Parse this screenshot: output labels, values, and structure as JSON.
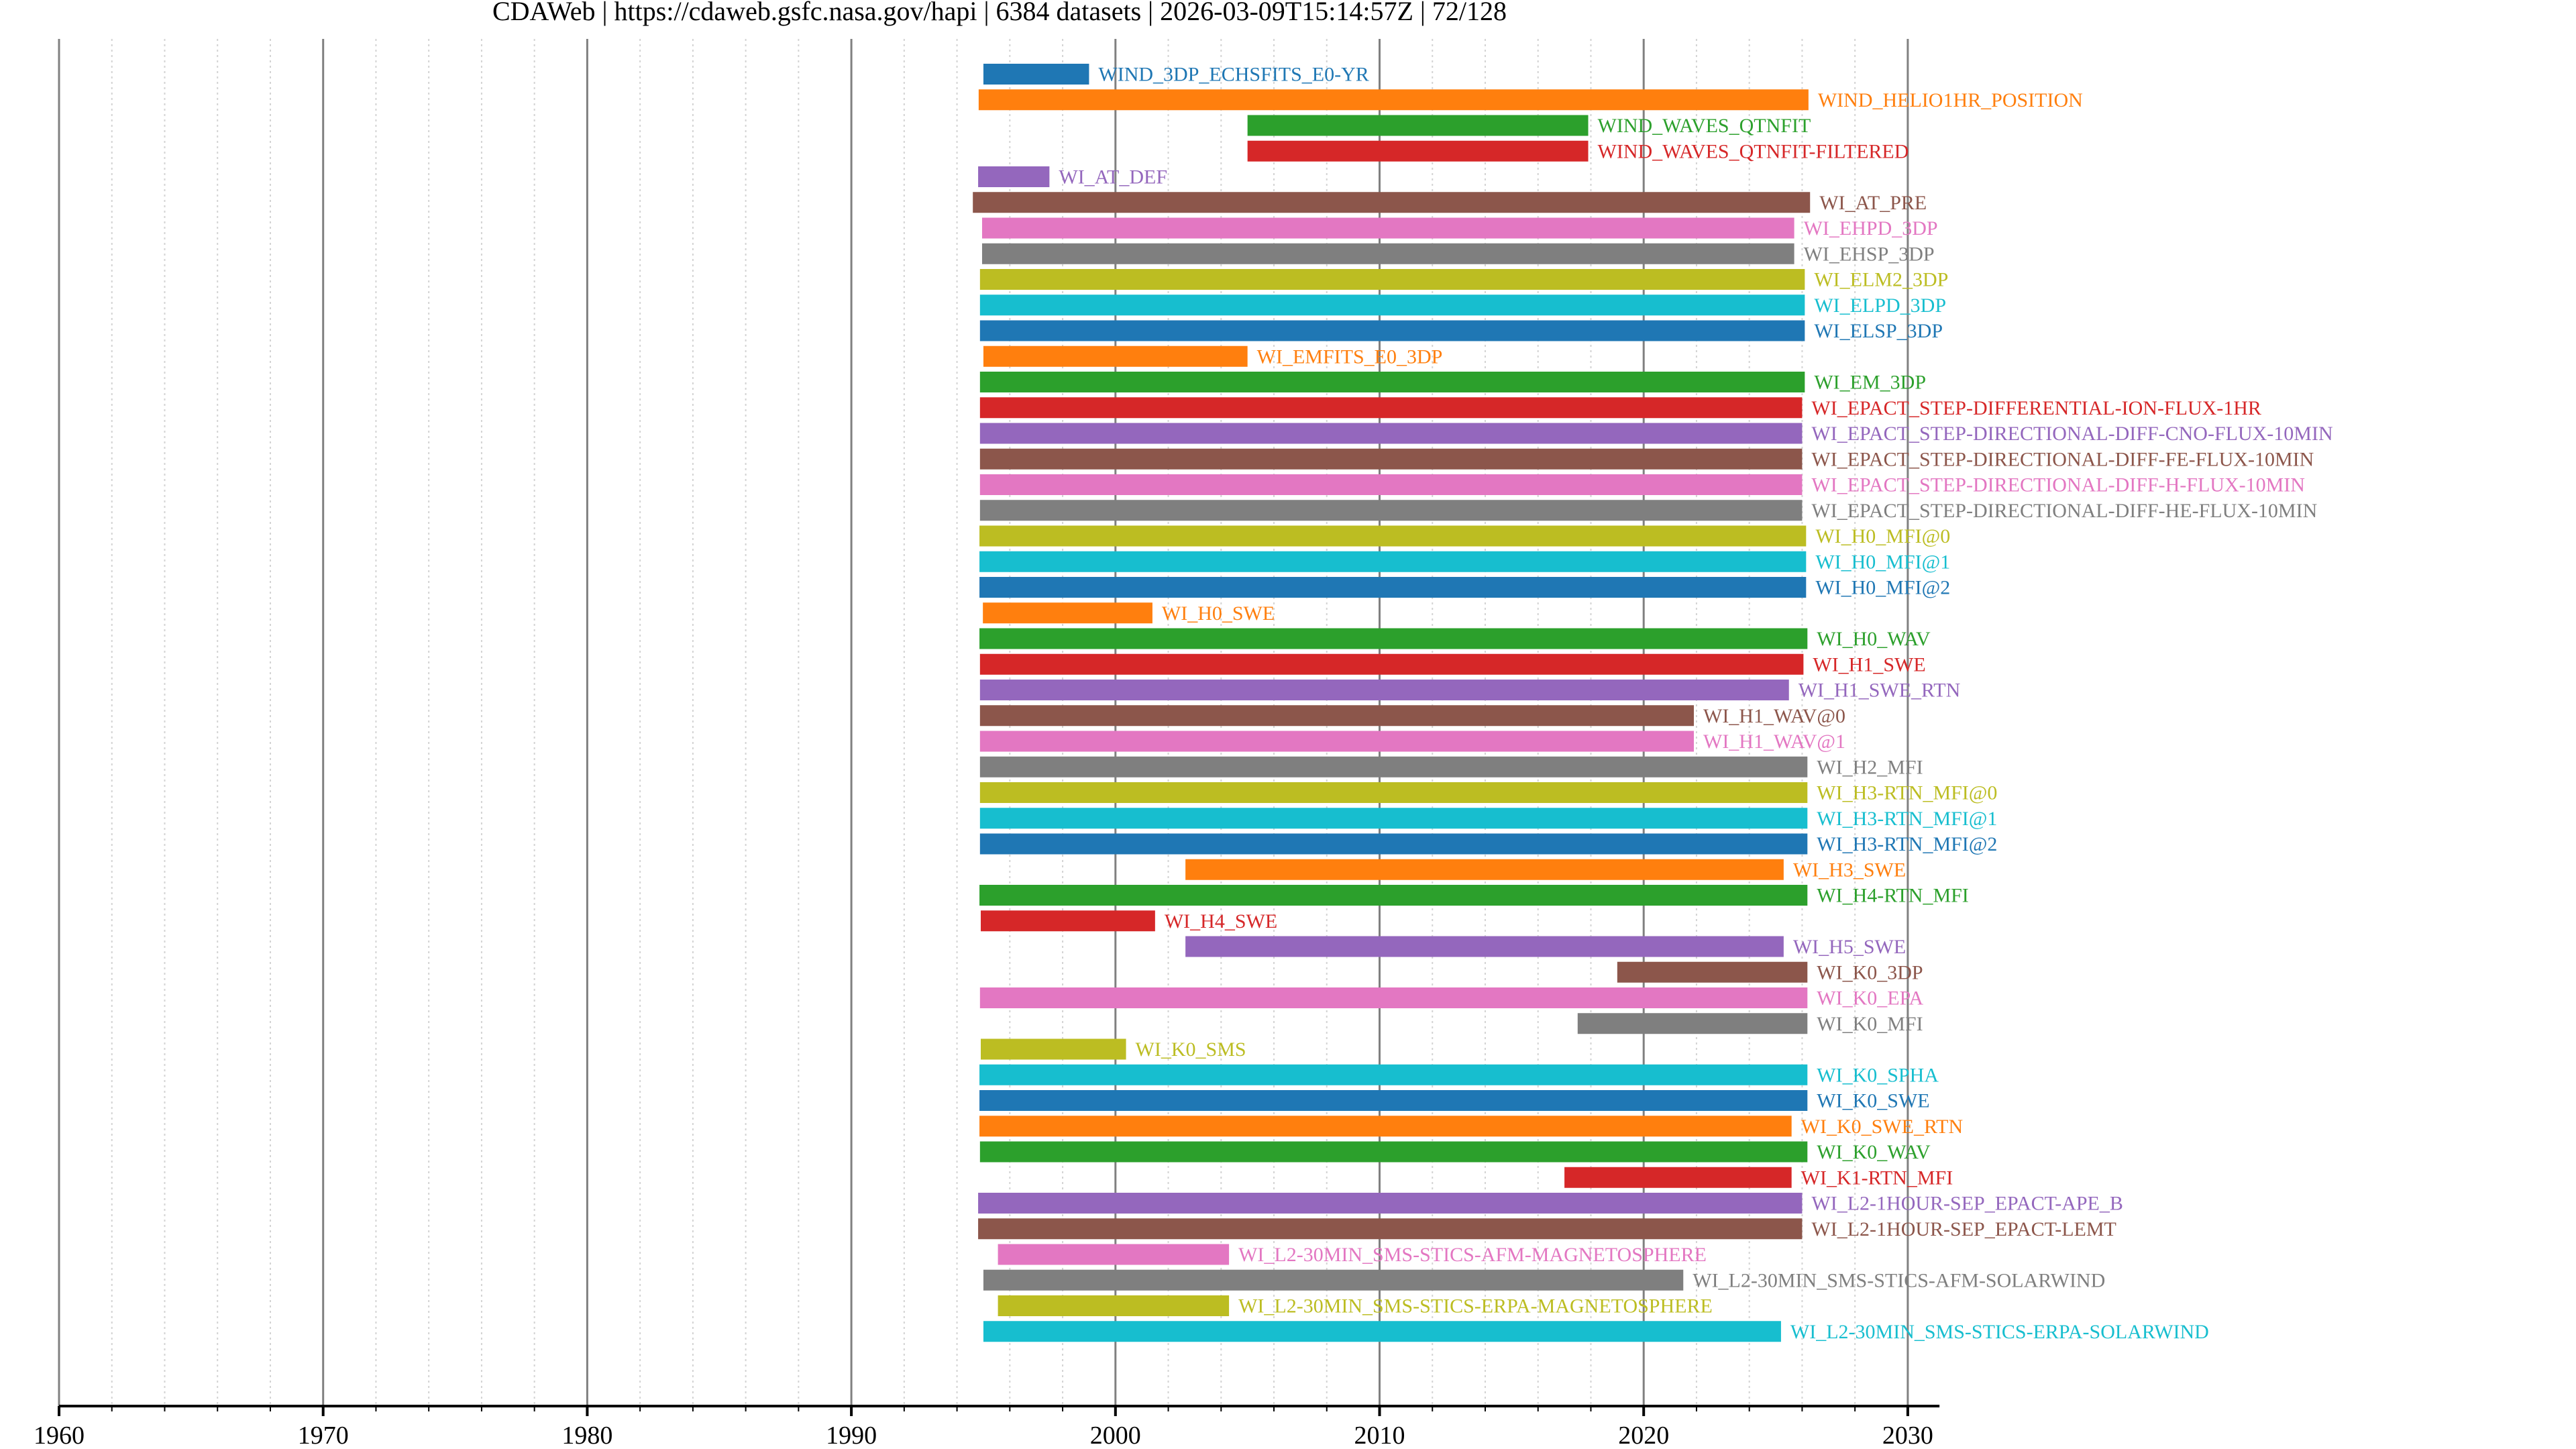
{
  "chart_data": {
    "type": "bar",
    "orientation": "horizontal-timeline",
    "title": "CDAWeb | https://cdaweb.gsfc.nasa.gov/hapi | 6384 datasets | 2026-03-09T15:14:57Z | 72/128",
    "xlabel": "",
    "ylabel": "",
    "xlim": [
      1960,
      2031.2
    ],
    "x_major_ticks": [
      1960,
      1970,
      1980,
      1990,
      2000,
      2010,
      2020,
      2030
    ],
    "x_tick_labels": [
      "1960",
      "1970",
      "1980",
      "1990",
      "2000",
      "2010",
      "2020",
      "2030"
    ],
    "x_minor_step": 2,
    "grid": {
      "major": "solid-gray",
      "minor": "dotted-lightgray"
    },
    "legend": "none (labels at bar ends)",
    "palette": [
      "#1f77b4",
      "#ff7f0e",
      "#2ca02c",
      "#d62728",
      "#9467bd",
      "#8c564b",
      "#e377c2",
      "#7f7f7f",
      "#bcbd22",
      "#17becf"
    ],
    "series": [
      {
        "name": "WIND_3DP_ECHSFITS_E0-YR",
        "start": 1995.0,
        "end": 1999.0
      },
      {
        "name": "WIND_HELIO1HR_POSITION",
        "start": 1994.82,
        "end": 2026.24
      },
      {
        "name": "WIND_WAVES_QTNFIT",
        "start": 2005.0,
        "end": 2017.9
      },
      {
        "name": "WIND_WAVES_QTNFIT-FILTERED",
        "start": 2005.0,
        "end": 2017.9
      },
      {
        "name": "WI_AT_DEF",
        "start": 1994.8,
        "end": 1997.5
      },
      {
        "name": "WI_AT_PRE",
        "start": 1994.6,
        "end": 2026.3
      },
      {
        "name": "WI_EHPD_3DP",
        "start": 1994.95,
        "end": 2025.7
      },
      {
        "name": "WI_EHSP_3DP",
        "start": 1994.95,
        "end": 2025.7
      },
      {
        "name": "WI_ELM2_3DP",
        "start": 1994.87,
        "end": 2026.1
      },
      {
        "name": "WI_ELPD_3DP",
        "start": 1994.87,
        "end": 2026.1
      },
      {
        "name": "WI_ELSP_3DP",
        "start": 1994.87,
        "end": 2026.1
      },
      {
        "name": "WI_EMFITS_E0_3DP",
        "start": 1995.0,
        "end": 2005.0
      },
      {
        "name": "WI_EM_3DP",
        "start": 1994.87,
        "end": 2026.1
      },
      {
        "name": "WI_EPACT_STEP-DIFFERENTIAL-ION-FLUX-1HR",
        "start": 1994.87,
        "end": 2026.0
      },
      {
        "name": "WI_EPACT_STEP-DIRECTIONAL-DIFF-CNO-FLUX-10MIN",
        "start": 1994.87,
        "end": 2026.0
      },
      {
        "name": "WI_EPACT_STEP-DIRECTIONAL-DIFF-FE-FLUX-10MIN",
        "start": 1994.87,
        "end": 2026.0
      },
      {
        "name": "WI_EPACT_STEP-DIRECTIONAL-DIFF-H-FLUX-10MIN",
        "start": 1994.87,
        "end": 2026.0
      },
      {
        "name": "WI_EPACT_STEP-DIRECTIONAL-DIFF-HE-FLUX-10MIN",
        "start": 1994.87,
        "end": 2026.0
      },
      {
        "name": "WI_H0_MFI@0",
        "start": 1994.85,
        "end": 2026.15
      },
      {
        "name": "WI_H0_MFI@1",
        "start": 1994.85,
        "end": 2026.15
      },
      {
        "name": "WI_H0_MFI@2",
        "start": 1994.85,
        "end": 2026.15
      },
      {
        "name": "WI_H0_SWE",
        "start": 1994.98,
        "end": 2001.4
      },
      {
        "name": "WI_H0_WAV",
        "start": 1994.85,
        "end": 2026.2
      },
      {
        "name": "WI_H1_SWE",
        "start": 1994.87,
        "end": 2026.05
      },
      {
        "name": "WI_H1_SWE_RTN",
        "start": 1994.87,
        "end": 2025.5
      },
      {
        "name": "WI_H1_WAV@0",
        "start": 1994.87,
        "end": 2021.9
      },
      {
        "name": "WI_H1_WAV@1",
        "start": 1994.87,
        "end": 2021.9
      },
      {
        "name": "WI_H2_MFI",
        "start": 1994.87,
        "end": 2026.2
      },
      {
        "name": "WI_H3-RTN_MFI@0",
        "start": 1994.87,
        "end": 2026.2
      },
      {
        "name": "WI_H3-RTN_MFI@1",
        "start": 1994.87,
        "end": 2026.2
      },
      {
        "name": "WI_H3-RTN_MFI@2",
        "start": 1994.87,
        "end": 2026.2
      },
      {
        "name": "WI_H3_SWE",
        "start": 2002.65,
        "end": 2025.3
      },
      {
        "name": "WI_H4-RTN_MFI",
        "start": 1994.85,
        "end": 2026.2
      },
      {
        "name": "WI_H4_SWE",
        "start": 1994.9,
        "end": 2001.5
      },
      {
        "name": "WI_H5_SWE",
        "start": 2002.65,
        "end": 2025.3
      },
      {
        "name": "WI_K0_3DP",
        "start": 2019.0,
        "end": 2026.2
      },
      {
        "name": "WI_K0_EPA",
        "start": 1994.87,
        "end": 2026.2
      },
      {
        "name": "WI_K0_MFI",
        "start": 2017.5,
        "end": 2026.2
      },
      {
        "name": "WI_K0_SMS",
        "start": 1994.9,
        "end": 2000.4
      },
      {
        "name": "WI_K0_SPHA",
        "start": 1994.85,
        "end": 2026.2
      },
      {
        "name": "WI_K0_SWE",
        "start": 1994.85,
        "end": 2026.2
      },
      {
        "name": "WI_K0_SWE_RTN",
        "start": 1994.85,
        "end": 2025.6
      },
      {
        "name": "WI_K0_WAV",
        "start": 1994.87,
        "end": 2026.2
      },
      {
        "name": "WI_K1-RTN_MFI",
        "start": 2017.0,
        "end": 2025.6
      },
      {
        "name": "WI_L2-1HOUR-SEP_EPACT-APE_B",
        "start": 1994.8,
        "end": 2026.0
      },
      {
        "name": "WI_L2-1HOUR-SEP_EPACT-LEMT",
        "start": 1994.8,
        "end": 2026.0
      },
      {
        "name": "WI_L2-30MIN_SMS-STICS-AFM-MAGNETOSPHERE",
        "start": 1995.55,
        "end": 2004.3
      },
      {
        "name": "WI_L2-30MIN_SMS-STICS-AFM-SOLARWIND",
        "start": 1995.0,
        "end": 2021.5
      },
      {
        "name": "WI_L2-30MIN_SMS-STICS-ERPA-MAGNETOSPHERE",
        "start": 1995.55,
        "end": 2004.3
      },
      {
        "name": "WI_L2-30MIN_SMS-STICS-ERPA-SOLARWIND",
        "start": 1995.0,
        "end": 2025.2
      }
    ]
  }
}
